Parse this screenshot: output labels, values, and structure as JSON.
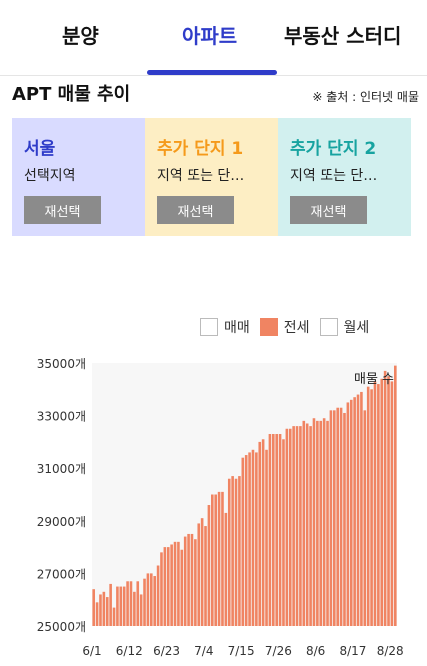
{
  "nav": {
    "tabs": [
      {
        "label": "분양"
      },
      {
        "label": "아파트"
      },
      {
        "label": "부동산 스터디"
      }
    ],
    "active_index": 1
  },
  "section": {
    "title": "APT 매물 추이",
    "source": "※ 출처 : 인터넷 매물"
  },
  "cards": [
    {
      "title": "서울",
      "subtitle": "선택지역",
      "button": "재선택",
      "title_color": "#2f3cc9",
      "bg": "#d9dbff"
    },
    {
      "title": "추가 단지 1",
      "subtitle": "지역 또는 단…",
      "button": "재선택",
      "title_color": "#f59a1b",
      "bg": "#fdeec4"
    },
    {
      "title": "추가 단지 2",
      "subtitle": "지역 또는 단…",
      "button": "재선택",
      "title_color": "#17a3a0",
      "bg": "#d2f0ef"
    }
  ],
  "legend": [
    {
      "label": "매매",
      "color": "#ffffff"
    },
    {
      "label": "전세",
      "color": "#f08462"
    },
    {
      "label": "월세",
      "color": "#ffffff"
    }
  ],
  "chart_data": {
    "type": "bar",
    "title": "",
    "annotation": "매물 수",
    "ylim": [
      25000,
      35000
    ],
    "yticks": [
      "35000개",
      "33000개",
      "31000개",
      "29000개",
      "27000개",
      "25000개"
    ],
    "xticks": [
      "6/1",
      "6/12",
      "6/23",
      "7/4",
      "7/15",
      "7/26",
      "8/6",
      "8/17",
      "8/28"
    ],
    "series": [
      {
        "name": "전세",
        "color": "#f08462",
        "values": [
          26400,
          25900,
          26200,
          26300,
          26100,
          26600,
          25700,
          26500,
          26500,
          26500,
          26700,
          26700,
          26300,
          26700,
          26200,
          26800,
          27000,
          27000,
          26900,
          27300,
          27800,
          28000,
          28000,
          28100,
          28200,
          28200,
          27900,
          28400,
          28500,
          28500,
          28300,
          28900,
          29100,
          28800,
          29600,
          30000,
          30000,
          30100,
          30100,
          29300,
          30600,
          30700,
          30600,
          30700,
          31400,
          31500,
          31600,
          31700,
          31600,
          32000,
          32100,
          31700,
          32300,
          32300,
          32300,
          32300,
          32100,
          32500,
          32500,
          32600,
          32600,
          32600,
          32800,
          32700,
          32600,
          32900,
          32800,
          32800,
          32900,
          32800,
          33200,
          33200,
          33300,
          33300,
          33100,
          33500,
          33600,
          33700,
          33800,
          33900,
          33200,
          34100,
          34000,
          34300,
          34200,
          34400,
          34700,
          34500,
          34300,
          34900
        ]
      }
    ]
  }
}
